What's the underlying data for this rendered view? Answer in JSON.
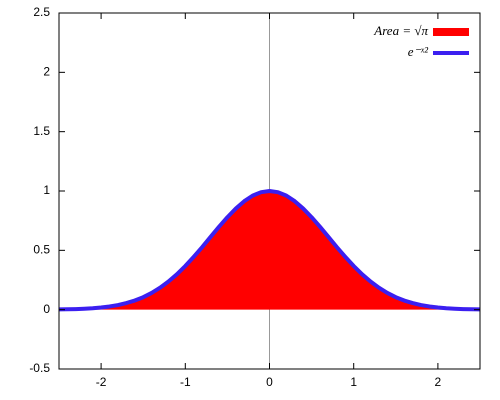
{
  "chart_data": {
    "type": "line",
    "x": [
      -2.5,
      -2.4,
      -2.3,
      -2.2,
      -2.1,
      -2.0,
      -1.9,
      -1.8,
      -1.7,
      -1.6,
      -1.5,
      -1.4,
      -1.3,
      -1.2,
      -1.1,
      -1.0,
      -0.9,
      -0.8,
      -0.7,
      -0.6,
      -0.5,
      -0.4,
      -0.3,
      -0.2,
      -0.1,
      0,
      0.1,
      0.2,
      0.3,
      0.4,
      0.5,
      0.6,
      0.7,
      0.8,
      0.9,
      1.0,
      1.1,
      1.2,
      1.3,
      1.4,
      1.5,
      1.6,
      1.7,
      1.8,
      1.9,
      2.0,
      2.1,
      2.2,
      2.3,
      2.4,
      2.5
    ],
    "series": [
      {
        "name": "Area = √π",
        "color": "#ff0000",
        "type": "area",
        "values": [
          0.002,
          0.003,
          0.005,
          0.008,
          0.012,
          0.018,
          0.027,
          0.039,
          0.056,
          0.077,
          0.105,
          0.141,
          0.185,
          0.237,
          0.298,
          0.368,
          0.445,
          0.527,
          0.613,
          0.698,
          0.779,
          0.852,
          0.914,
          0.961,
          0.99,
          1,
          0.99,
          0.961,
          0.914,
          0.852,
          0.779,
          0.698,
          0.613,
          0.527,
          0.445,
          0.368,
          0.298,
          0.237,
          0.185,
          0.141,
          0.105,
          0.077,
          0.056,
          0.039,
          0.027,
          0.018,
          0.012,
          0.008,
          0.005,
          0.003,
          0.002
        ]
      },
      {
        "name": "e⁻ˣ²",
        "color": "#3b1ff0",
        "type": "line",
        "values": [
          0.002,
          0.003,
          0.005,
          0.008,
          0.012,
          0.018,
          0.027,
          0.039,
          0.056,
          0.077,
          0.105,
          0.141,
          0.185,
          0.237,
          0.298,
          0.368,
          0.445,
          0.527,
          0.613,
          0.698,
          0.779,
          0.852,
          0.914,
          0.961,
          0.99,
          1,
          0.99,
          0.961,
          0.914,
          0.852,
          0.779,
          0.698,
          0.613,
          0.527,
          0.445,
          0.368,
          0.298,
          0.237,
          0.185,
          0.141,
          0.105,
          0.077,
          0.056,
          0.039,
          0.027,
          0.018,
          0.012,
          0.008,
          0.005,
          0.003,
          0.002
        ]
      }
    ],
    "xlim": [
      -2.5,
      2.5
    ],
    "xticks": [
      -2,
      -1,
      0,
      1,
      2
    ],
    "ylim": [
      -0.5,
      2.5
    ],
    "yticks": [
      -0.5,
      0,
      0.5,
      1,
      1.5,
      2,
      2.5
    ],
    "zeroaxis": true,
    "legend": "top-right"
  }
}
